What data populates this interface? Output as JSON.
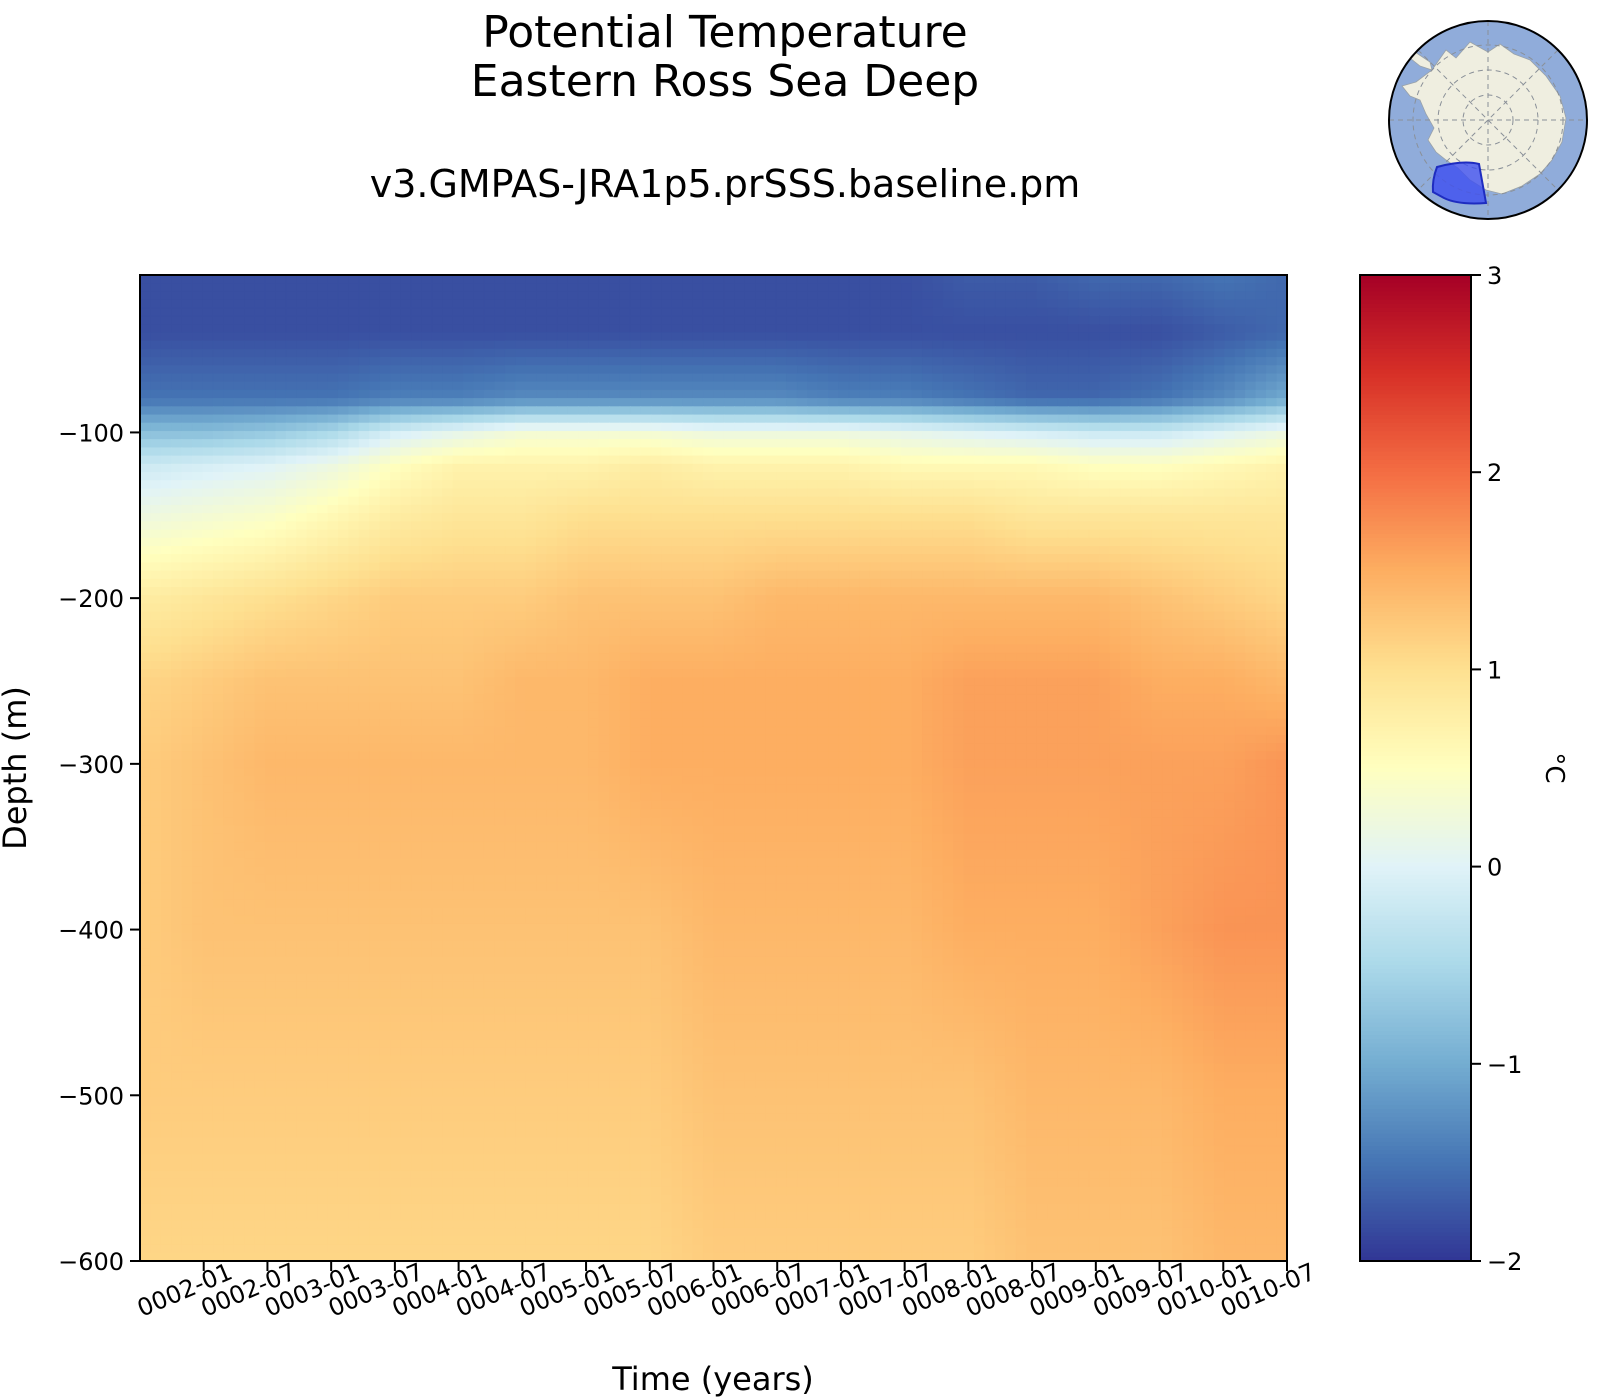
{
  "title": {
    "line1": "Potential Temperature",
    "line2": "Eastern Ross Sea Deep"
  },
  "subtitle": "v3.GMPAS-JRA1p5.prSSS.baseline.pm",
  "colors": {
    "land": "#efeee0",
    "ocean": "#90acda",
    "region": "#3d4ff0"
  },
  "chart_data": {
    "type": "heatmap",
    "xlabel": "Time (years)",
    "ylabel": "Depth (m)",
    "colorbar_label": "°C",
    "colormap": "RdYlBu_r",
    "clim": [
      -2,
      3
    ],
    "colorbar_ticks": [
      -2,
      -1,
      0,
      1,
      2,
      3
    ],
    "colorbar_tick_labels": [
      "−2",
      "−1",
      "0",
      "1",
      "2",
      "3"
    ],
    "xlim": [
      "0001-07",
      "0010-07"
    ],
    "ylim": [
      -600,
      -5
    ],
    "x_tick_labels": [
      "0002-01",
      "0002-07",
      "0003-01",
      "0003-07",
      "0004-01",
      "0004-07",
      "0005-01",
      "0005-07",
      "0006-01",
      "0006-07",
      "0007-01",
      "0007-07",
      "0008-01",
      "0008-07",
      "0009-01",
      "0009-07",
      "0010-01",
      "0010-07"
    ],
    "y_ticks": [
      -100,
      -200,
      -300,
      -400,
      -500,
      -600
    ],
    "y_tick_labels": [
      "−100",
      "−200",
      "−300",
      "−400",
      "−500",
      "−600"
    ],
    "x": [
      "0001-07",
      "0002-01",
      "0002-07",
      "0003-01",
      "0003-07",
      "0004-01",
      "0004-07",
      "0005-01",
      "0005-07",
      "0006-01",
      "0006-07",
      "0007-01",
      "0007-07",
      "0008-01",
      "0008-07",
      "0009-01",
      "0009-07",
      "0010-01",
      "0010-07"
    ],
    "depth": [
      -5,
      -40,
      -80,
      -100,
      -120,
      -150,
      -200,
      -250,
      -300,
      -400,
      -500,
      -600
    ],
    "values": [
      [
        -1.8,
        -1.8,
        -1.8,
        -1.8,
        -1.8,
        -1.8,
        -1.8,
        -1.8,
        -1.8,
        -1.8,
        -1.8,
        -1.8,
        -1.8,
        -1.7,
        -1.7,
        -1.6,
        -1.6,
        -1.5,
        -1.6
      ],
      [
        -1.8,
        -1.8,
        -1.8,
        -1.8,
        -1.8,
        -1.8,
        -1.8,
        -1.8,
        -1.8,
        -1.8,
        -1.8,
        -1.8,
        -1.8,
        -1.8,
        -1.8,
        -1.8,
        -1.8,
        -1.7,
        -1.6
      ],
      [
        -1.5,
        -1.5,
        -1.5,
        -1.5,
        -1.4,
        -1.4,
        -1.3,
        -1.3,
        -1.3,
        -1.3,
        -1.3,
        -1.4,
        -1.4,
        -1.5,
        -1.6,
        -1.6,
        -1.5,
        -1.3,
        -1.0
      ],
      [
        -0.8,
        -0.8,
        -0.7,
        -0.5,
        -0.1,
        0.1,
        0.3,
        0.3,
        0.3,
        0.2,
        0.2,
        0.2,
        0.1,
        0.0,
        -0.1,
        -0.2,
        -0.2,
        0.0,
        0.2
      ],
      [
        -0.2,
        -0.1,
        0.0,
        0.2,
        0.5,
        0.7,
        0.7,
        0.7,
        0.8,
        0.7,
        0.7,
        0.7,
        0.6,
        0.6,
        0.6,
        0.5,
        0.5,
        0.6,
        0.7
      ],
      [
        0.2,
        0.3,
        0.4,
        0.6,
        0.8,
        0.9,
        0.9,
        1.0,
        1.0,
        1.0,
        1.0,
        1.0,
        1.0,
        1.0,
        0.9,
        0.9,
        0.9,
        0.9,
        0.9
      ],
      [
        0.8,
        0.9,
        1.0,
        1.1,
        1.2,
        1.2,
        1.2,
        1.3,
        1.3,
        1.3,
        1.4,
        1.4,
        1.4,
        1.4,
        1.4,
        1.4,
        1.3,
        1.2,
        1.1
      ],
      [
        1.1,
        1.2,
        1.3,
        1.3,
        1.3,
        1.3,
        1.4,
        1.4,
        1.5,
        1.5,
        1.5,
        1.5,
        1.5,
        1.6,
        1.6,
        1.6,
        1.5,
        1.5,
        1.4
      ],
      [
        1.2,
        1.3,
        1.4,
        1.4,
        1.4,
        1.4,
        1.4,
        1.4,
        1.5,
        1.5,
        1.5,
        1.5,
        1.5,
        1.6,
        1.6,
        1.6,
        1.6,
        1.6,
        1.7
      ],
      [
        1.2,
        1.3,
        1.3,
        1.3,
        1.3,
        1.3,
        1.3,
        1.3,
        1.3,
        1.4,
        1.4,
        1.4,
        1.4,
        1.5,
        1.5,
        1.5,
        1.6,
        1.7,
        1.7
      ],
      [
        1.2,
        1.2,
        1.2,
        1.2,
        1.2,
        1.2,
        1.2,
        1.2,
        1.2,
        1.3,
        1.3,
        1.3,
        1.3,
        1.3,
        1.4,
        1.4,
        1.4,
        1.5,
        1.5
      ],
      [
        1.1,
        1.1,
        1.1,
        1.1,
        1.1,
        1.1,
        1.1,
        1.1,
        1.1,
        1.2,
        1.2,
        1.2,
        1.2,
        1.2,
        1.3,
        1.3,
        1.3,
        1.4,
        1.4
      ]
    ]
  }
}
